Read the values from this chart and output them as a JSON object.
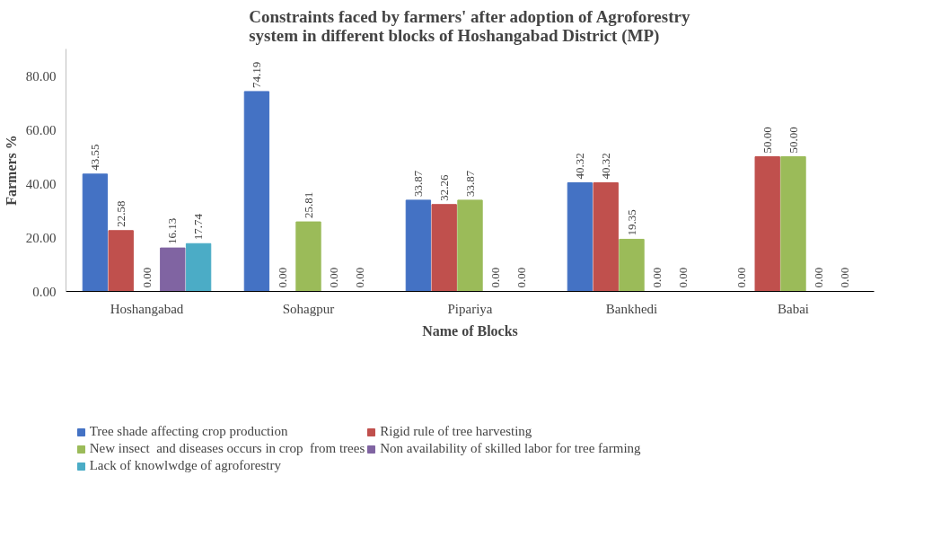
{
  "chart_data": {
    "type": "bar",
    "title": "Constraints faced by farmers' after adoption of Agroforestry\nsystem in different blocks of Hoshangabad District (MP)",
    "xlabel": "Name of Blocks",
    "ylabel": "Farmers %",
    "categories": [
      "Hoshangabad",
      "Sohagpur",
      "Pipariya",
      "Bankhedi",
      "Babai"
    ],
    "series": [
      {
        "name": "Tree shade affecting crop production",
        "color": "#4472c4",
        "values": [
          43.55,
          74.19,
          33.87,
          40.32,
          0.0
        ],
        "value_labels": [
          "43.55",
          "74.19",
          "33.87",
          "40.32",
          "0.00"
        ]
      },
      {
        "name": "Rigid rule of tree harvesting",
        "color": "#c0504d",
        "values": [
          22.58,
          0.0,
          32.26,
          40.32,
          50.0
        ],
        "value_labels": [
          "22.58",
          "0.00",
          "32.26",
          "40.32",
          "50.00"
        ]
      },
      {
        "name": "New insect  and diseases occurs in crop  from trees",
        "color": "#9bbb59",
        "values": [
          0.0,
          25.81,
          33.87,
          19.35,
          50.0
        ],
        "value_labels": [
          "0.00",
          "25.81",
          "33.87",
          "19.35",
          "50.00"
        ]
      },
      {
        "name": "Non availability of skilled labor for tree farming",
        "color": "#8064a2",
        "values": [
          16.13,
          0.0,
          0.0,
          0.0,
          0.0
        ],
        "value_labels": [
          "16.13",
          "0.00",
          "0.00",
          "0.00",
          "0.00"
        ]
      },
      {
        "name": "Lack of knowlwdge of agroforestry",
        "color": "#4bacc6",
        "values": [
          17.74,
          0.0,
          0.0,
          0.0,
          0.0
        ],
        "value_labels": [
          "17.74",
          "0.00",
          "0.00",
          "0.00",
          "0.00"
        ]
      }
    ],
    "ylim": [
      0,
      90
    ],
    "yticks": [
      {
        "value": 0,
        "label": "0.00"
      },
      {
        "value": 20,
        "label": "20.00"
      },
      {
        "value": 40,
        "label": "40.00"
      },
      {
        "value": 60,
        "label": "60.00"
      },
      {
        "value": 80,
        "label": "80.00"
      }
    ],
    "grid": false,
    "legend": "bottom"
  }
}
